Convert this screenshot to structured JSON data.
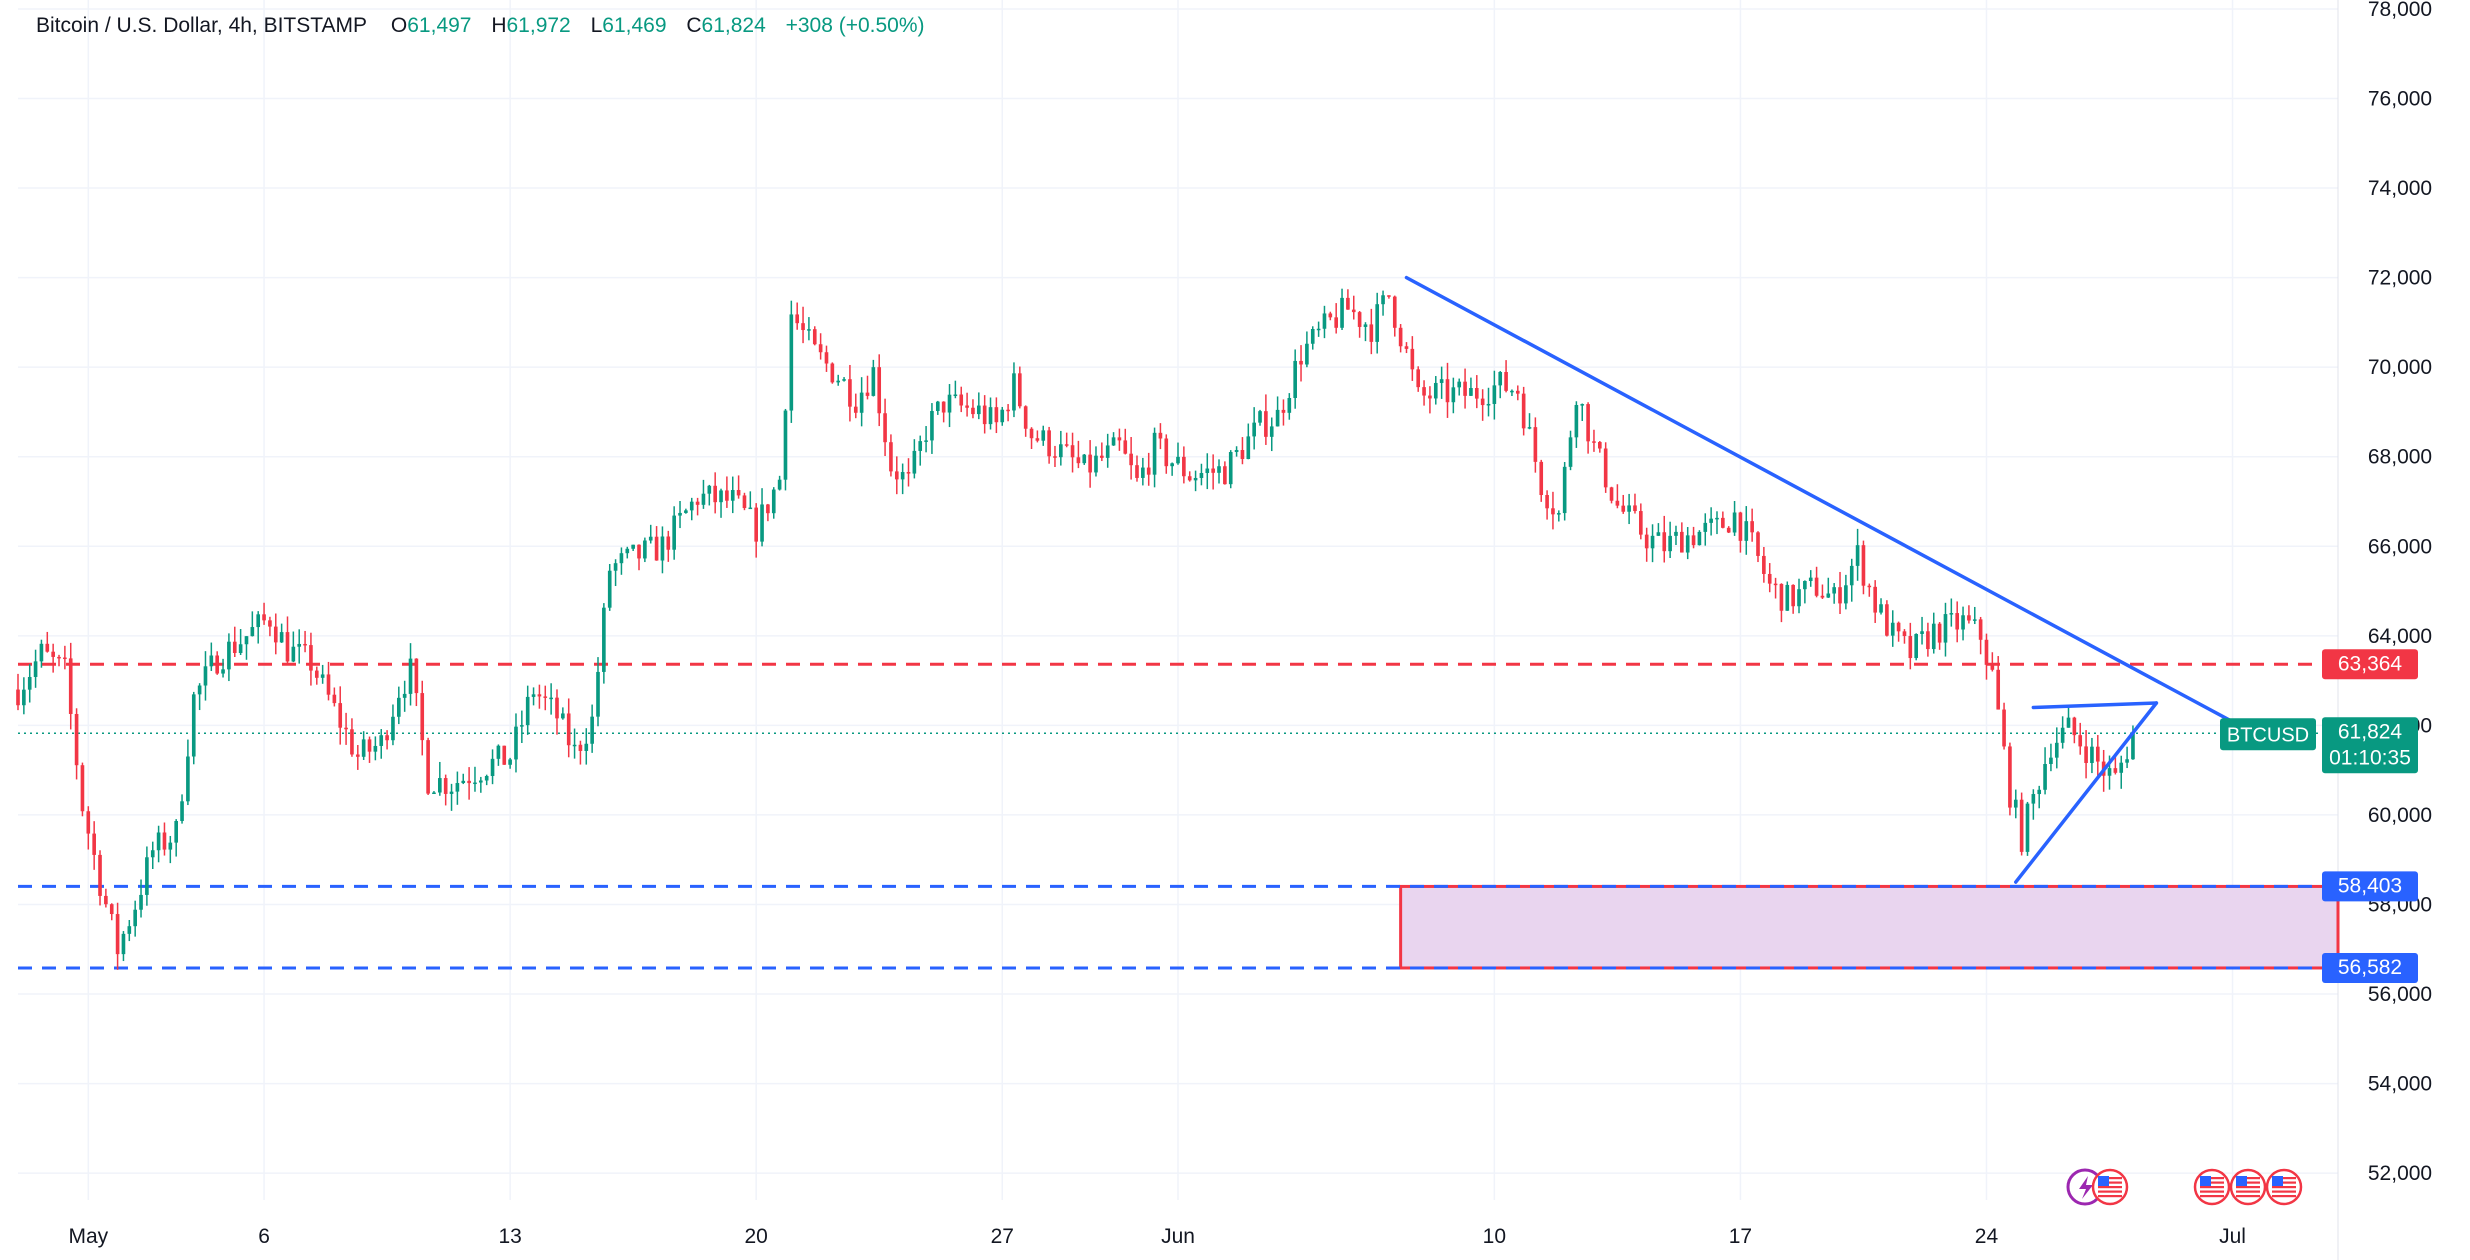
{
  "legend": {
    "symbol": "Bitcoin / U.S. Dollar, 4h, BITSTAMP",
    "open_label": "O",
    "open": "61,497",
    "high_label": "H",
    "high": "61,972",
    "low_label": "L",
    "low": "61,469",
    "close_label": "C",
    "close": "61,824",
    "change": "+308 (+0.50%)"
  },
  "colors": {
    "up": "#089981",
    "down": "#f23645",
    "trendline": "#2962ff",
    "resistance": "#f23645",
    "support": "#2962ff",
    "zone_fill": "#e9d5ef",
    "zone_border": "#f23645"
  },
  "chart_data": {
    "type": "candlestick",
    "symbol": "BTCUSD",
    "interval": "4h",
    "ylim": [
      51400,
      78200
    ],
    "y_ticks": [
      52000,
      54000,
      56000,
      58000,
      60000,
      62000,
      64000,
      66000,
      68000,
      70000,
      72000,
      74000,
      76000,
      78000
    ],
    "y_tick_labels": [
      "52,000",
      "54,000",
      "56,000",
      "58,000",
      "60,000",
      "62,000",
      "64,000",
      "66,000",
      "68,000",
      "70,000",
      "72,000",
      "74,000",
      "76,000",
      "78,000"
    ],
    "x_start": "2024-04-29",
    "x_end": "2024-07-04",
    "x_ticks": [
      {
        "date": "2024-05-01",
        "label": "May"
      },
      {
        "date": "2024-05-06",
        "label": "6"
      },
      {
        "date": "2024-05-13",
        "label": "13"
      },
      {
        "date": "2024-05-20",
        "label": "20"
      },
      {
        "date": "2024-05-27",
        "label": "27"
      },
      {
        "date": "2024-06-01",
        "label": "Jun"
      },
      {
        "date": "2024-06-10",
        "label": "10"
      },
      {
        "date": "2024-06-17",
        "label": "17"
      },
      {
        "date": "2024-06-24",
        "label": "24"
      },
      {
        "date": "2024-07-01",
        "label": "Jul"
      }
    ],
    "price_path": [
      [
        "2024-04-29 00:00",
        62800
      ],
      [
        "2024-04-29 16:00",
        63600
      ],
      [
        "2024-04-30 08:00",
        63200
      ],
      [
        "2024-04-30 20:00",
        60200
      ],
      [
        "2024-05-01 08:00",
        58500
      ],
      [
        "2024-05-01 20:00",
        57000
      ],
      [
        "2024-05-02 08:00",
        58000
      ],
      [
        "2024-05-02 20:00",
        59200
      ],
      [
        "2024-05-03 12:00",
        59600
      ],
      [
        "2024-05-04 00:00",
        62600
      ],
      [
        "2024-05-04 16:00",
        63500
      ],
      [
        "2024-05-05 08:00",
        63900
      ],
      [
        "2024-05-06 04:00",
        64400
      ],
      [
        "2024-05-06 16:00",
        63700
      ],
      [
        "2024-05-07 08:00",
        63400
      ],
      [
        "2024-05-07 20:00",
        62600
      ],
      [
        "2024-05-08 16:00",
        61300
      ],
      [
        "2024-05-09 08:00",
        61600
      ],
      [
        "2024-05-09 20:00",
        62800
      ],
      [
        "2024-05-10 04:00",
        63200
      ],
      [
        "2024-05-10 16:00",
        60800
      ],
      [
        "2024-05-11 08:00",
        60700
      ],
      [
        "2024-05-12 08:00",
        61100
      ],
      [
        "2024-05-13 00:00",
        61300
      ],
      [
        "2024-05-13 16:00",
        62800
      ],
      [
        "2024-05-14 08:00",
        62200
      ],
      [
        "2024-05-14 20:00",
        61400
      ],
      [
        "2024-05-15 08:00",
        62100
      ],
      [
        "2024-05-15 20:00",
        65500
      ],
      [
        "2024-05-16 16:00",
        65800
      ],
      [
        "2024-05-17 08:00",
        66000
      ],
      [
        "2024-05-18 08:00",
        67100
      ],
      [
        "2024-05-19 08:00",
        67000
      ],
      [
        "2024-05-20 00:00",
        66400
      ],
      [
        "2024-05-20 16:00",
        67500
      ],
      [
        "2024-05-21 00:00",
        71200
      ],
      [
        "2024-05-21 16:00",
        70300
      ],
      [
        "2024-05-22 08:00",
        69800
      ],
      [
        "2024-05-22 20:00",
        69300
      ],
      [
        "2024-05-23 08:00",
        69900
      ],
      [
        "2024-05-23 20:00",
        67800
      ],
      [
        "2024-05-24 08:00",
        67400
      ],
      [
        "2024-05-24 20:00",
        68600
      ],
      [
        "2024-05-25 08:00",
        69200
      ],
      [
        "2024-05-26 08:00",
        69000
      ],
      [
        "2024-05-26 20:00",
        68700
      ],
      [
        "2024-05-27 08:00",
        69600
      ],
      [
        "2024-05-27 20:00",
        68500
      ],
      [
        "2024-05-28 12:00",
        68200
      ],
      [
        "2024-05-29 08:00",
        67700
      ],
      [
        "2024-05-30 08:00",
        68200
      ],
      [
        "2024-05-30 20:00",
        67400
      ],
      [
        "2024-05-31 08:00",
        68200
      ],
      [
        "2024-06-01 08:00",
        67600
      ],
      [
        "2024-06-02 08:00",
        67700
      ],
      [
        "2024-06-03 08:00",
        68700
      ],
      [
        "2024-06-03 20:00",
        68900
      ],
      [
        "2024-06-04 12:00",
        70300
      ],
      [
        "2024-06-05 08:00",
        71000
      ],
      [
        "2024-06-05 20:00",
        71300
      ],
      [
        "2024-06-06 12:00",
        70900
      ],
      [
        "2024-06-07 00:00",
        71600
      ],
      [
        "2024-06-07 12:00",
        70300
      ],
      [
        "2024-06-07 20:00",
        69300
      ],
      [
        "2024-06-08 08:00",
        69400
      ],
      [
        "2024-06-09 08:00",
        69400
      ],
      [
        "2024-06-10 04:00",
        69600
      ],
      [
        "2024-06-10 16:00",
        69500
      ],
      [
        "2024-06-11 08:00",
        67400
      ],
      [
        "2024-06-11 20:00",
        66700
      ],
      [
        "2024-06-12 08:00",
        69500
      ],
      [
        "2024-06-12 20:00",
        68200
      ],
      [
        "2024-06-13 12:00",
        66900
      ],
      [
        "2024-06-14 08:00",
        66200
      ],
      [
        "2024-06-14 20:00",
        66000
      ],
      [
        "2024-06-15 08:00",
        66200
      ],
      [
        "2024-06-16 08:00",
        66400
      ],
      [
        "2024-06-16 20:00",
        66700
      ],
      [
        "2024-06-17 08:00",
        66000
      ],
      [
        "2024-06-17 20:00",
        65100
      ],
      [
        "2024-06-18 08:00",
        64800
      ],
      [
        "2024-06-19 04:00",
        65100
      ],
      [
        "2024-06-19 16:00",
        64800
      ],
      [
        "2024-06-20 08:00",
        65800
      ],
      [
        "2024-06-20 20:00",
        64700
      ],
      [
        "2024-06-21 08:00",
        64000
      ],
      [
        "2024-06-21 20:00",
        63600
      ],
      [
        "2024-06-22 12:00",
        64100
      ],
      [
        "2024-06-23 08:00",
        64300
      ],
      [
        "2024-06-23 20:00",
        64000
      ],
      [
        "2024-06-24 04:00",
        63100
      ],
      [
        "2024-06-24 16:00",
        60500
      ],
      [
        "2024-06-25 00:00",
        59500
      ],
      [
        "2024-06-25 12:00",
        60800
      ],
      [
        "2024-06-25 20:00",
        61600
      ],
      [
        "2024-06-26 08:00",
        61900
      ],
      [
        "2024-06-26 20:00",
        61500
      ],
      [
        "2024-06-27 08:00",
        61000
      ],
      [
        "2024-06-27 16:00",
        60800
      ],
      [
        "2024-06-28 04:00",
        61824
      ]
    ],
    "current_price": 61824,
    "current_price_label": "61,824",
    "countdown": "01:10:35",
    "symbol_tag": "BTCUSD",
    "levels": [
      {
        "name": "resistance",
        "price": 63364,
        "label": "63,364",
        "style": "dashed",
        "color": "#f23645"
      },
      {
        "name": "support-upper",
        "price": 58403,
        "label": "58,403",
        "style": "dashed",
        "color": "#2962ff"
      },
      {
        "name": "support-lower",
        "price": 56582,
        "label": "56,582",
        "style": "dashed",
        "color": "#2962ff"
      }
    ],
    "zone": {
      "start": "2024-06-07 08:00",
      "price_top": 58403,
      "price_bottom": 56582
    },
    "trendlines": [
      {
        "name": "descending-trendline",
        "from": [
          "2024-06-07 12:00",
          72000
        ],
        "to": [
          "2024-07-01 16:00",
          61800
        ]
      },
      {
        "name": "triangle-upper",
        "from": [
          "2024-06-25 08:00",
          62400
        ],
        "to": [
          "2024-06-28 20:00",
          62500
        ]
      },
      {
        "name": "triangle-lower",
        "from": [
          "2024-06-24 20:00",
          58500
        ],
        "to": [
          "2024-06-28 20:00",
          62500
        ]
      }
    ]
  }
}
